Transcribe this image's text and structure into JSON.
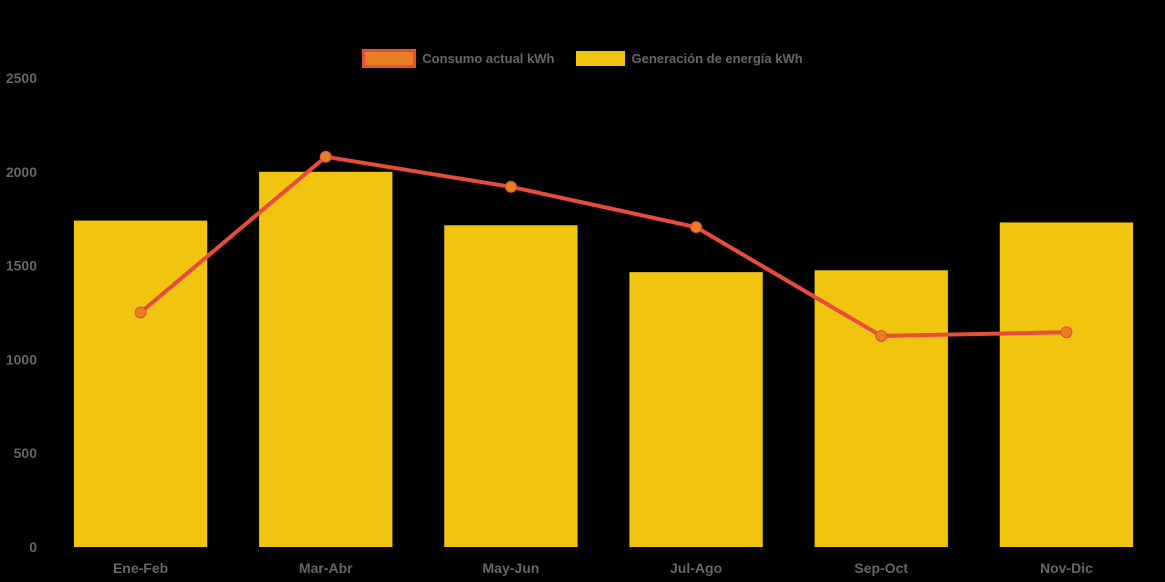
{
  "page": {
    "background_color": "#000000",
    "text_color": "#666666"
  },
  "legend": {
    "position": "top",
    "items": [
      {
        "label": "Consumo actual kWh"
      },
      {
        "label": "Generación de energía kWh"
      }
    ]
  },
  "chart_data": {
    "type": "bar-line-combo",
    "categories": [
      "Ene-Feb",
      "Mar-Abr",
      "May-Jun",
      "Jul-Ago",
      "Sep-Oct",
      "Nov-Dic"
    ],
    "series": [
      {
        "name": "Consumo actual kWh",
        "type": "line",
        "values": [
          1250,
          2080,
          1920,
          1705,
          1125,
          1145
        ],
        "line_color": "#e74c3c",
        "point_color": "#e67e22"
      },
      {
        "name": "Generación de energía kWh",
        "type": "bar",
        "values": [
          1740,
          2000,
          1715,
          1465,
          1475,
          1730
        ],
        "color": "#f1c40f"
      }
    ],
    "ylabel": "",
    "xlabel": "",
    "ylim": [
      0,
      2500
    ],
    "y_ticks": [
      0,
      500,
      1000,
      1500,
      2000,
      2500
    ],
    "grid": false,
    "legend_position": "top",
    "axis_text_color": "#666666"
  }
}
